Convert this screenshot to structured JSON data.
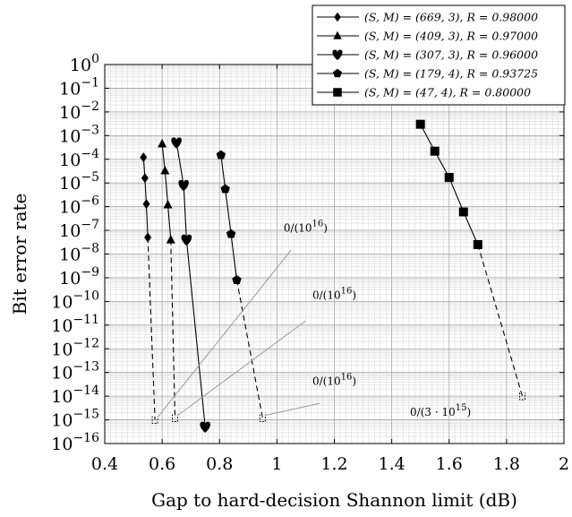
{
  "chart_data": {
    "type": "line",
    "xlabel": "Gap to hard-decision Shannon limit (dB)",
    "ylabel": "Bit error rate",
    "xlim": [
      0.4,
      2.0
    ],
    "ylim_exponent": [
      -16,
      0
    ],
    "y_scale": "log",
    "grid": true,
    "legend_position": "top-right",
    "x_ticks": [
      "0.4",
      "0.6",
      "0.8",
      "1",
      "1.2",
      "1.4",
      "1.6",
      "1.8",
      "2"
    ],
    "x_tick_values": [
      0.4,
      0.6,
      0.8,
      1.0,
      1.2,
      1.4,
      1.6,
      1.8,
      2.0
    ],
    "y_tick_exponents": [
      0,
      -1,
      -2,
      -3,
      -4,
      -5,
      -6,
      -7,
      -8,
      -9,
      -10,
      -11,
      -12,
      -13,
      -14,
      -15,
      -16
    ],
    "y_tick_base": "10",
    "series": [
      {
        "name": "(S, M) = (669, 3), R = 0.98000",
        "marker": "diamond",
        "points": [
          [
            0.535,
            0.00012
          ],
          [
            0.54,
            1.6e-05
          ],
          [
            0.545,
            1.3e-06
          ],
          [
            0.55,
            5e-08
          ]
        ],
        "extrapolation": [
          [
            0.55,
            5e-08
          ],
          [
            0.575,
            1e-15
          ]
        ],
        "annotation_point": [
          0.575,
          1e-15
        ]
      },
      {
        "name": "(S, M) = (409, 3), R = 0.97000",
        "marker": "triangle",
        "points": [
          [
            0.6,
            0.00045
          ],
          [
            0.61,
            3.3e-05
          ],
          [
            0.62,
            1.2e-06
          ],
          [
            0.63,
            4e-08
          ]
        ],
        "extrapolation": [
          [
            0.63,
            4e-08
          ],
          [
            0.645,
            1.2e-15
          ]
        ],
        "annotation_point": [
          0.645,
          1.2e-15
        ]
      },
      {
        "name": "(S, M) = (307, 3), R = 0.96000",
        "marker": "heart",
        "points": [
          [
            0.65,
            0.0005
          ],
          [
            0.675,
            8e-06
          ],
          [
            0.685,
            4e-08
          ],
          [
            0.75,
            5e-16
          ]
        ],
        "extrapolation": [],
        "annotation_point": null
      },
      {
        "name": "(S, M) = (179, 4), R = 0.93725",
        "marker": "pentagon",
        "points": [
          [
            0.805,
            0.00015
          ],
          [
            0.82,
            5.5e-06
          ],
          [
            0.84,
            7e-08
          ],
          [
            0.86,
            8e-10
          ]
        ],
        "extrapolation": [
          [
            0.86,
            8e-10
          ],
          [
            0.95,
            1.2e-15
          ]
        ],
        "annotation_point": [
          0.95,
          1.2e-15
        ]
      },
      {
        "name": "(S, M) = (47, 4), R = 0.80000",
        "marker": "square",
        "points": [
          [
            1.5,
            0.003
          ],
          [
            1.55,
            0.00022
          ],
          [
            1.6,
            1.7e-05
          ],
          [
            1.65,
            6e-07
          ],
          [
            1.7,
            2.5e-08
          ]
        ],
        "extrapolation": [
          [
            1.7,
            2.5e-08
          ],
          [
            1.855,
            1e-14
          ]
        ],
        "annotation_point": [
          1.855,
          1e-14
        ]
      }
    ],
    "annotations": [
      {
        "text": "0/(10^16)",
        "base": "0/(10",
        "sup": "16",
        "tail": ")",
        "target_series": 0,
        "label_at": [
          1.1,
          9e-08
        ],
        "leader_from": [
          1.05,
          1.5e-08
        ]
      },
      {
        "text": "0/(10^16)",
        "base": "0/(10",
        "sup": "16",
        "tail": ")",
        "target_series": 1,
        "label_at": [
          1.2,
          1.3e-10
        ],
        "leader_from": [
          1.1,
          1.5e-11
        ]
      },
      {
        "text": "0/(10^16)",
        "base": "0/(10",
        "sup": "16",
        "tail": ")",
        "target_series": 3,
        "label_at": [
          1.2,
          3e-14
        ],
        "leader_from": [
          1.15,
          5e-15
        ]
      },
      {
        "text": "0/(3·10^15)",
        "base": "0/(3 · 10",
        "sup": "15",
        "tail": ")",
        "target_series": 4,
        "label_at": [
          1.57,
          1.5e-15
        ],
        "leader_from": null
      }
    ]
  }
}
